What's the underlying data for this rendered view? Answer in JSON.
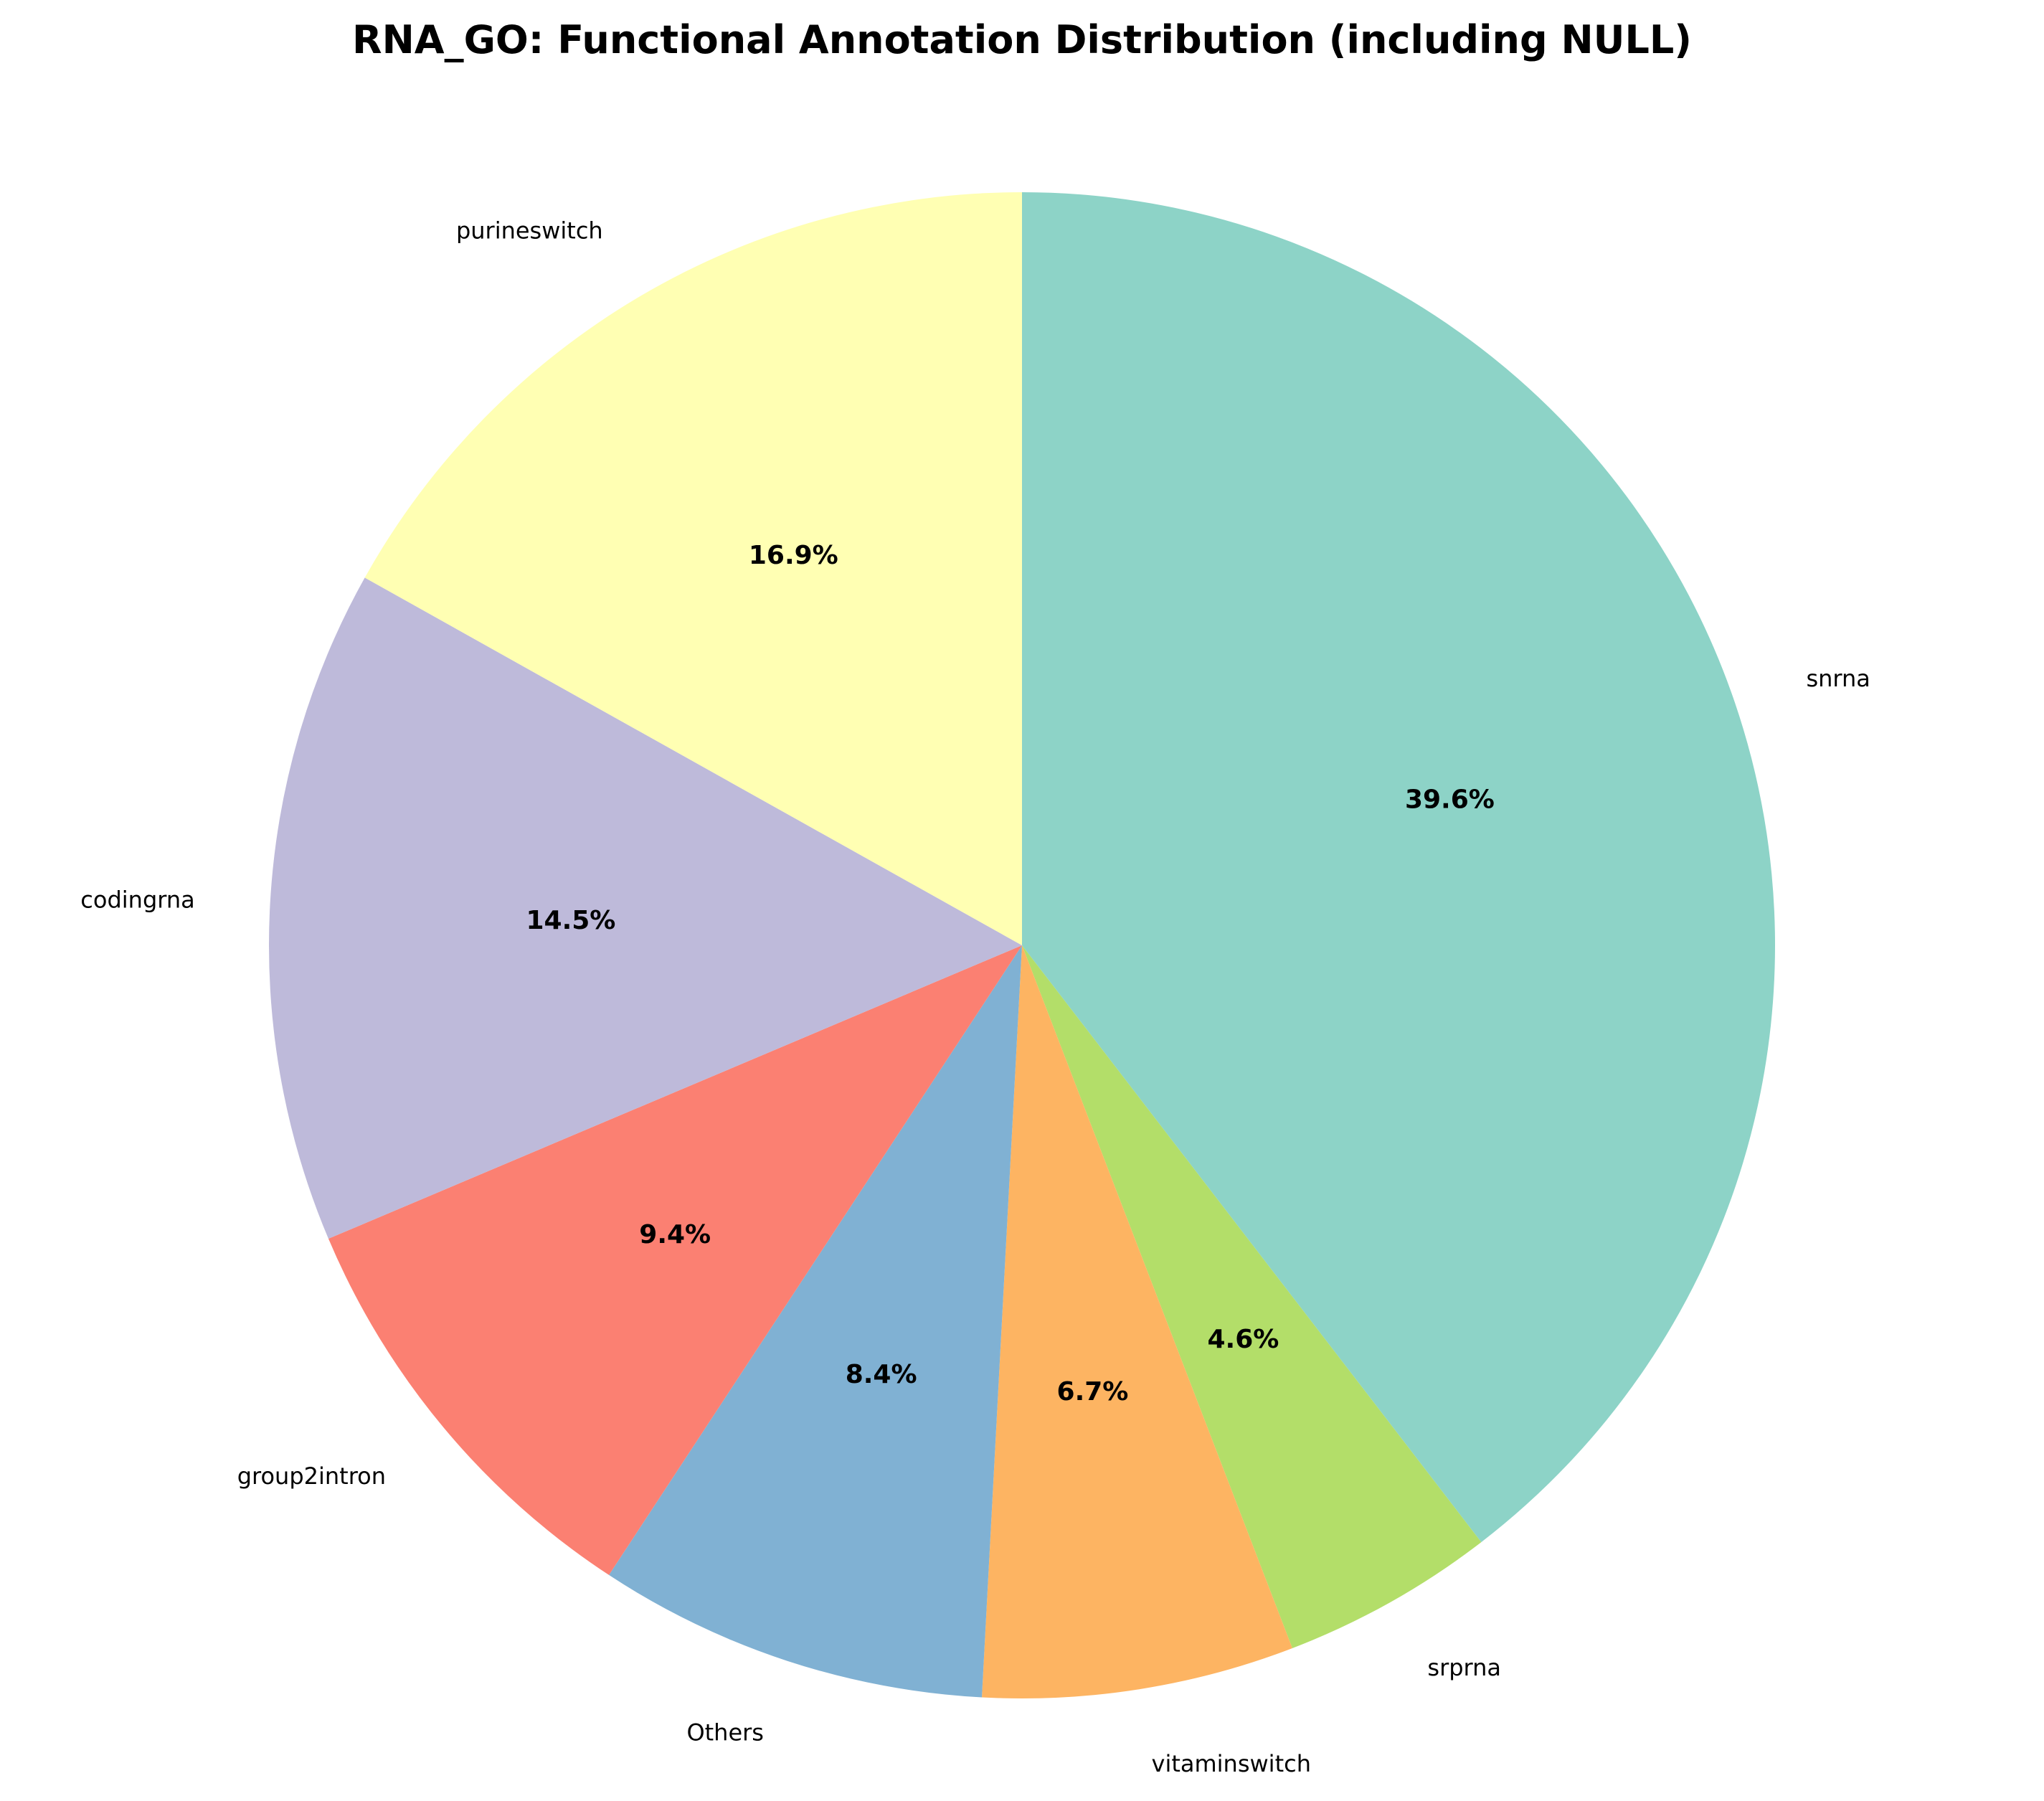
{
  "chart_data": {
    "type": "pie",
    "title": "RNA_GO: Functional Annotation Distribution (including NULL)",
    "start_angle_deg": 90,
    "direction": "clockwise",
    "slices": [
      {
        "label": "snrna",
        "value": 39.6,
        "pct_label": "39.6%",
        "color": "#8dd3c7"
      },
      {
        "label": "srprna",
        "value": 4.6,
        "pct_label": "4.6%",
        "color": "#b3de69"
      },
      {
        "label": "vitaminswitch",
        "value": 6.7,
        "pct_label": "6.7%",
        "color": "#fdb462"
      },
      {
        "label": "Others",
        "value": 8.4,
        "pct_label": "8.4%",
        "color": "#80b1d3"
      },
      {
        "label": "group2intron",
        "value": 9.4,
        "pct_label": "9.4%",
        "color": "#fb8072"
      },
      {
        "label": "codingrna",
        "value": 14.5,
        "pct_label": "14.5%",
        "color": "#bebada"
      },
      {
        "label": "purineswitch",
        "value": 16.9,
        "pct_label": "16.9%",
        "color": "#ffffb3"
      }
    ]
  }
}
